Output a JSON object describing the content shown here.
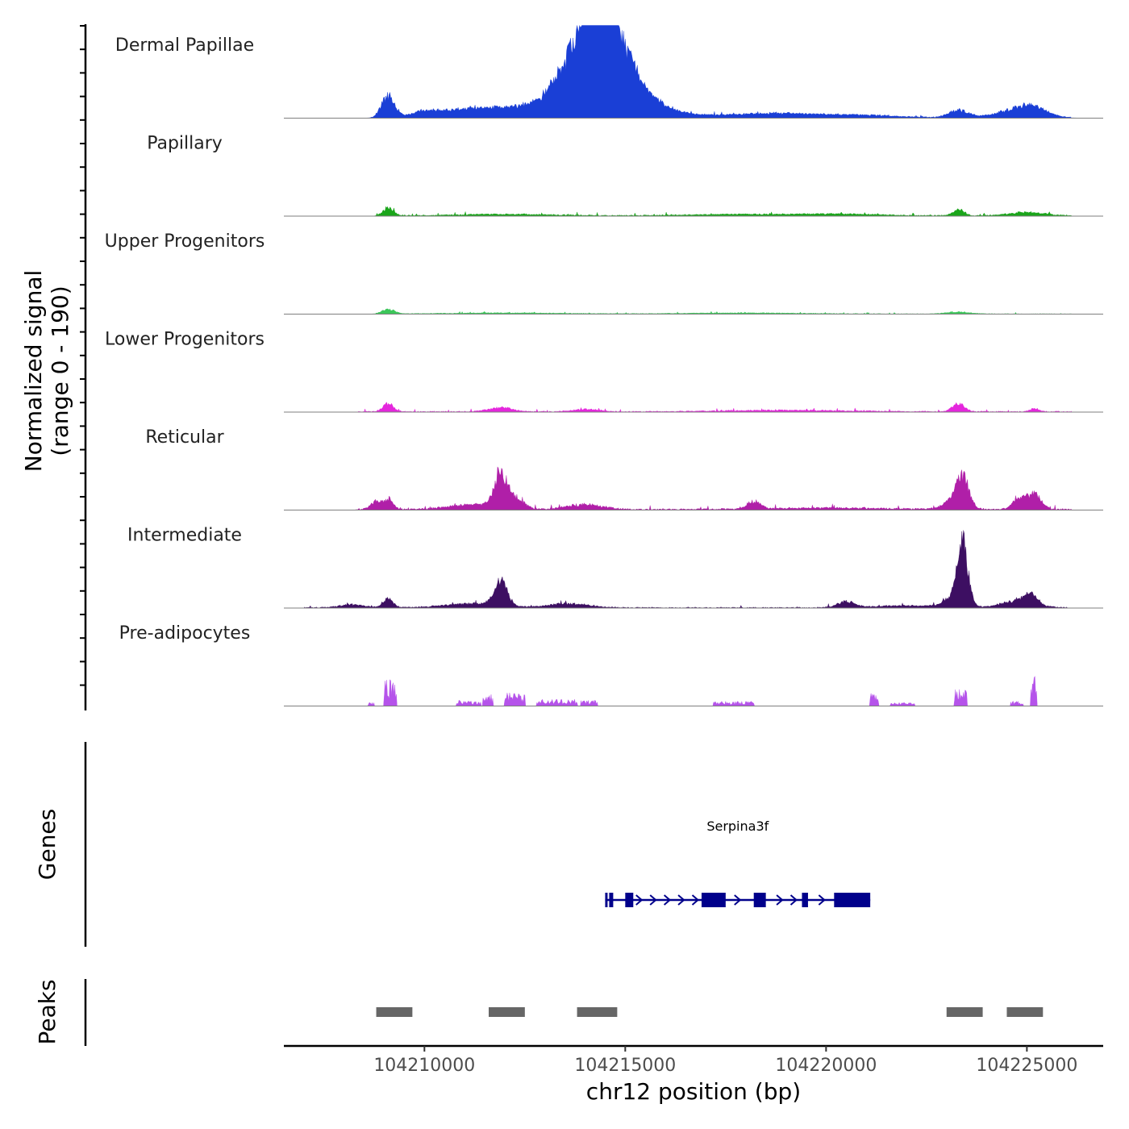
{
  "chart_data": {
    "type": "area",
    "title": "",
    "xlabel": "chr12 position (bp)",
    "ylabel": "Normalized signal",
    "ylabel_range": "(range 0 - 190)",
    "xlim": [
      104206500,
      104226900
    ],
    "ylim": [
      0,
      190
    ],
    "x_ticks": [
      104210000,
      104215000,
      104220000,
      104225000
    ],
    "x_tick_labels": [
      "104210000",
      "104215000",
      "104220000",
      "104225000"
    ],
    "series": [
      {
        "name": "Dermal Papillae",
        "color": "#1a3fd6",
        "base_level": 2,
        "noise_start": 104208800,
        "noise_end": 104226100,
        "peaks": [
          [
            104209100,
            160,
            45
          ],
          [
            104210000,
            300,
            8
          ],
          [
            104211000,
            800,
            12
          ],
          [
            104212000,
            1000,
            12
          ],
          [
            104213500,
            300,
            8
          ],
          [
            104214200,
            200,
            50
          ],
          [
            104214300,
            1000,
            60
          ],
          [
            104214350,
            650,
            150
          ],
          [
            104214600,
            200,
            60
          ],
          [
            104215500,
            800,
            6
          ],
          [
            104218000,
            1000,
            6
          ],
          [
            104219300,
            800,
            6
          ],
          [
            104221000,
            800,
            5
          ],
          [
            104223300,
            250,
            15
          ],
          [
            104224800,
            500,
            18
          ],
          [
            104225200,
            300,
            12
          ]
        ]
      },
      {
        "name": "Papillary",
        "color": "#1aa51a",
        "base_level": 2,
        "noise_start": 104208800,
        "noise_end": 104226100,
        "peaks": [
          [
            104209100,
            130,
            16
          ],
          [
            104212000,
            1200,
            3
          ],
          [
            104218000,
            1500,
            3
          ],
          [
            104223300,
            130,
            14
          ],
          [
            104225000,
            450,
            7
          ],
          [
            104220500,
            900,
            3
          ]
        ]
      },
      {
        "name": "Upper Progenitors",
        "color": "#3cc65a",
        "base_level": 1,
        "noise_start": 104208800,
        "noise_end": 104226100,
        "peaks": [
          [
            104209100,
            150,
            9
          ],
          [
            104212000,
            1500,
            2
          ],
          [
            104218000,
            1500,
            2
          ],
          [
            104223300,
            300,
            4
          ]
        ]
      },
      {
        "name": "Lower Progenitors",
        "color": "#e426dc",
        "base_level": 2,
        "noise_start": 104208300,
        "noise_end": 104226100,
        "peaks": [
          [
            104209100,
            130,
            16
          ],
          [
            104211900,
            300,
            8
          ],
          [
            104214000,
            300,
            5
          ],
          [
            104223300,
            150,
            16
          ],
          [
            104225200,
            100,
            7
          ],
          [
            104219000,
            1500,
            3
          ]
        ]
      },
      {
        "name": "Reticular",
        "color": "#b01fa8",
        "base_level": 3,
        "noise_start": 104208300,
        "noise_end": 104226100,
        "peaks": [
          [
            104208800,
            130,
            16
          ],
          [
            104209100,
            120,
            20
          ],
          [
            104211200,
            600,
            10
          ],
          [
            104211900,
            160,
            70
          ],
          [
            104212300,
            180,
            20
          ],
          [
            104214000,
            450,
            10
          ],
          [
            104218200,
            160,
            16
          ],
          [
            104223200,
            250,
            18
          ],
          [
            104223400,
            150,
            60
          ],
          [
            104224800,
            150,
            25
          ],
          [
            104225200,
            160,
            32
          ],
          [
            104220000,
            1500,
            3
          ]
        ]
      },
      {
        "name": "Intermediate",
        "color": "#3d0f62",
        "base_level": 2,
        "noise_start": 104207000,
        "noise_end": 104226000,
        "peaks": [
          [
            104208200,
            300,
            6
          ],
          [
            104209100,
            120,
            18
          ],
          [
            104211200,
            700,
            8
          ],
          [
            104211900,
            160,
            50
          ],
          [
            104213600,
            500,
            8
          ],
          [
            104220500,
            200,
            12
          ],
          [
            104223200,
            250,
            20
          ],
          [
            104223400,
            130,
            120
          ],
          [
            104224800,
            400,
            15
          ],
          [
            104225100,
            140,
            22
          ],
          [
            104222000,
            800,
            4
          ]
        ]
      },
      {
        "name": "Pre-adipocytes",
        "color": "#b553ea",
        "base_level": 0,
        "noise_start": 104208300,
        "noise_end": 104226100,
        "bursts": [
          [
            104208600,
            104208750,
            8
          ],
          [
            104209000,
            104209300,
            55
          ],
          [
            104210800,
            104211400,
            12
          ],
          [
            104211450,
            104211700,
            28
          ],
          [
            104212000,
            104212500,
            28
          ],
          [
            104212800,
            104213800,
            14
          ],
          [
            104213900,
            104214300,
            12
          ],
          [
            104217200,
            104218200,
            10
          ],
          [
            104221100,
            104221300,
            28
          ],
          [
            104221600,
            104222200,
            8
          ],
          [
            104223200,
            104223500,
            35
          ],
          [
            104224600,
            104224900,
            10
          ],
          [
            104225100,
            104225250,
            70
          ]
        ]
      }
    ],
    "genes": [
      {
        "name": "Serpina3f",
        "strand": "+",
        "start": 104214500,
        "end": 104221100,
        "exons": [
          [
            104214500,
            104214550
          ],
          [
            104214600,
            104214700
          ],
          [
            104215000,
            104215200
          ],
          [
            104216900,
            104217500
          ],
          [
            104218200,
            104218500
          ],
          [
            104219400,
            104219550
          ],
          [
            104220200,
            104221100
          ]
        ],
        "color": "#00008b"
      }
    ],
    "peaks_track": [
      [
        104208800,
        104209700
      ],
      [
        104211600,
        104212500
      ],
      [
        104213800,
        104214800
      ],
      [
        104223000,
        104223900
      ],
      [
        104224500,
        104225400
      ]
    ],
    "peaks_color": "#666666"
  },
  "labels": {
    "genes_track": "Genes",
    "peaks_track": "Peaks"
  }
}
